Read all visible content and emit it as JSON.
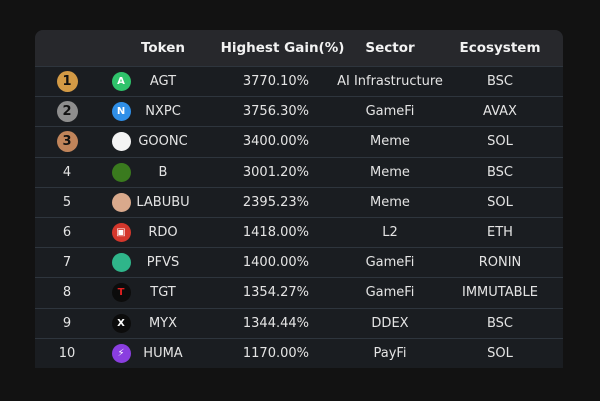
{
  "headers": {
    "rank": "",
    "token": "Token",
    "gain": "Highest Gain(%)",
    "sector": "Sector",
    "ecosystem": "Ecosystem"
  },
  "medal_colors": {
    "1": "#d39a45",
    "2": "#8e8e8e",
    "3": "#c0845a"
  },
  "rows": [
    {
      "rank": "1",
      "token": "AGT",
      "gain": "3770.10%",
      "sector": "AI Infrastructure",
      "ecosystem": "BSC",
      "icon": "agt-logo-icon",
      "icon_color": "#2fc36b",
      "glyph": "A"
    },
    {
      "rank": "2",
      "token": "NXPC",
      "gain": "3756.30%",
      "sector": "GameFi",
      "ecosystem": "AVAX",
      "icon": "nxpc-logo-icon",
      "icon_color": "#2f8fe8",
      "glyph": "N"
    },
    {
      "rank": "3",
      "token": "GOONC",
      "gain": "3400.00%",
      "sector": "Meme",
      "ecosystem": "SOL",
      "icon": "goonc-logo-icon",
      "icon_color": "#f4f4f4",
      "glyph": ""
    },
    {
      "rank": "4",
      "token": "B",
      "gain": "3001.20%",
      "sector": "Meme",
      "ecosystem": "BSC",
      "icon": "b-logo-icon",
      "icon_color": "#3a7a1e",
      "glyph": ""
    },
    {
      "rank": "5",
      "token": "LABUBU",
      "gain": "2395.23%",
      "sector": "Meme",
      "ecosystem": "SOL",
      "icon": "labubu-logo-icon",
      "icon_color": "#d9a98c",
      "glyph": ""
    },
    {
      "rank": "6",
      "token": "RDO",
      "gain": "1418.00%",
      "sector": "L2",
      "ecosystem": "ETH",
      "icon": "rdo-logo-icon",
      "icon_color": "#d4372c",
      "glyph": "▣"
    },
    {
      "rank": "7",
      "token": "PFVS",
      "gain": "1400.00%",
      "sector": "GameFi",
      "ecosystem": "RONIN",
      "icon": "pfvs-logo-icon",
      "icon_color": "#2fb58a",
      "glyph": ""
    },
    {
      "rank": "8",
      "token": "TGT",
      "gain": "1354.27%",
      "sector": "GameFi",
      "ecosystem": "IMMUTABLE",
      "icon": "tgt-logo-icon",
      "icon_color": "#0c0c0c",
      "glyph": "T"
    },
    {
      "rank": "9",
      "token": "MYX",
      "gain": "1344.44%",
      "sector": "DDEX",
      "ecosystem": "BSC",
      "icon": "myx-logo-icon",
      "icon_color": "#0c0c0c",
      "glyph": "X"
    },
    {
      "rank": "10",
      "token": "HUMA",
      "gain": "1170.00%",
      "sector": "PayFi",
      "ecosystem": "SOL",
      "icon": "huma-logo-icon",
      "icon_color": "#8a3ee0",
      "glyph": "⚡"
    }
  ]
}
